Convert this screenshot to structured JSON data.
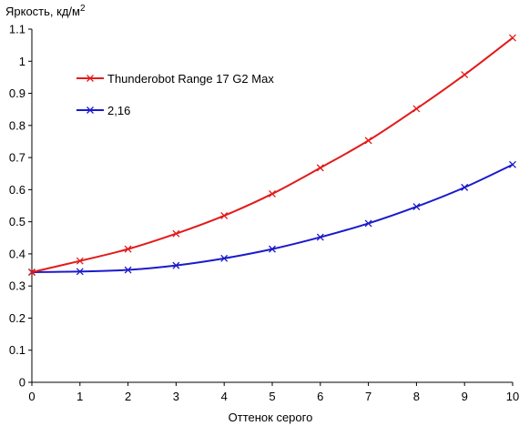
{
  "chart_data": {
    "type": "line",
    "title": "",
    "ylabel": "Яркость, кд/м",
    "ylabel_sup": "2",
    "xlabel": "Оттенок серого",
    "xlim": [
      0,
      10
    ],
    "ylim": [
      0,
      1.1
    ],
    "x_ticks": [
      "0",
      "1",
      "2",
      "3",
      "4",
      "5",
      "6",
      "7",
      "8",
      "9",
      "10"
    ],
    "y_ticks": [
      "0",
      "0.1",
      "0.2",
      "0.3",
      "0.4",
      "0.5",
      "0.6",
      "0.7",
      "0.8",
      "0.9",
      "1",
      "1.1"
    ],
    "grid": false,
    "legend_position": "top-left",
    "x": [
      0,
      1,
      2,
      3,
      4,
      5,
      6,
      7,
      8,
      9,
      10
    ],
    "series": [
      {
        "name": "Thunderobot Range 17 G2 Max",
        "color": "#e31a1a",
        "marker": "x",
        "values": [
          0.343,
          0.378,
          0.415,
          0.463,
          0.519,
          0.587,
          0.668,
          0.753,
          0.852,
          0.958,
          1.073
        ]
      },
      {
        "name": "2,16",
        "color": "#1a1acc",
        "marker": "x",
        "values": [
          0.343,
          0.345,
          0.35,
          0.364,
          0.386,
          0.415,
          0.452,
          0.495,
          0.547,
          0.607,
          0.678
        ]
      }
    ]
  }
}
